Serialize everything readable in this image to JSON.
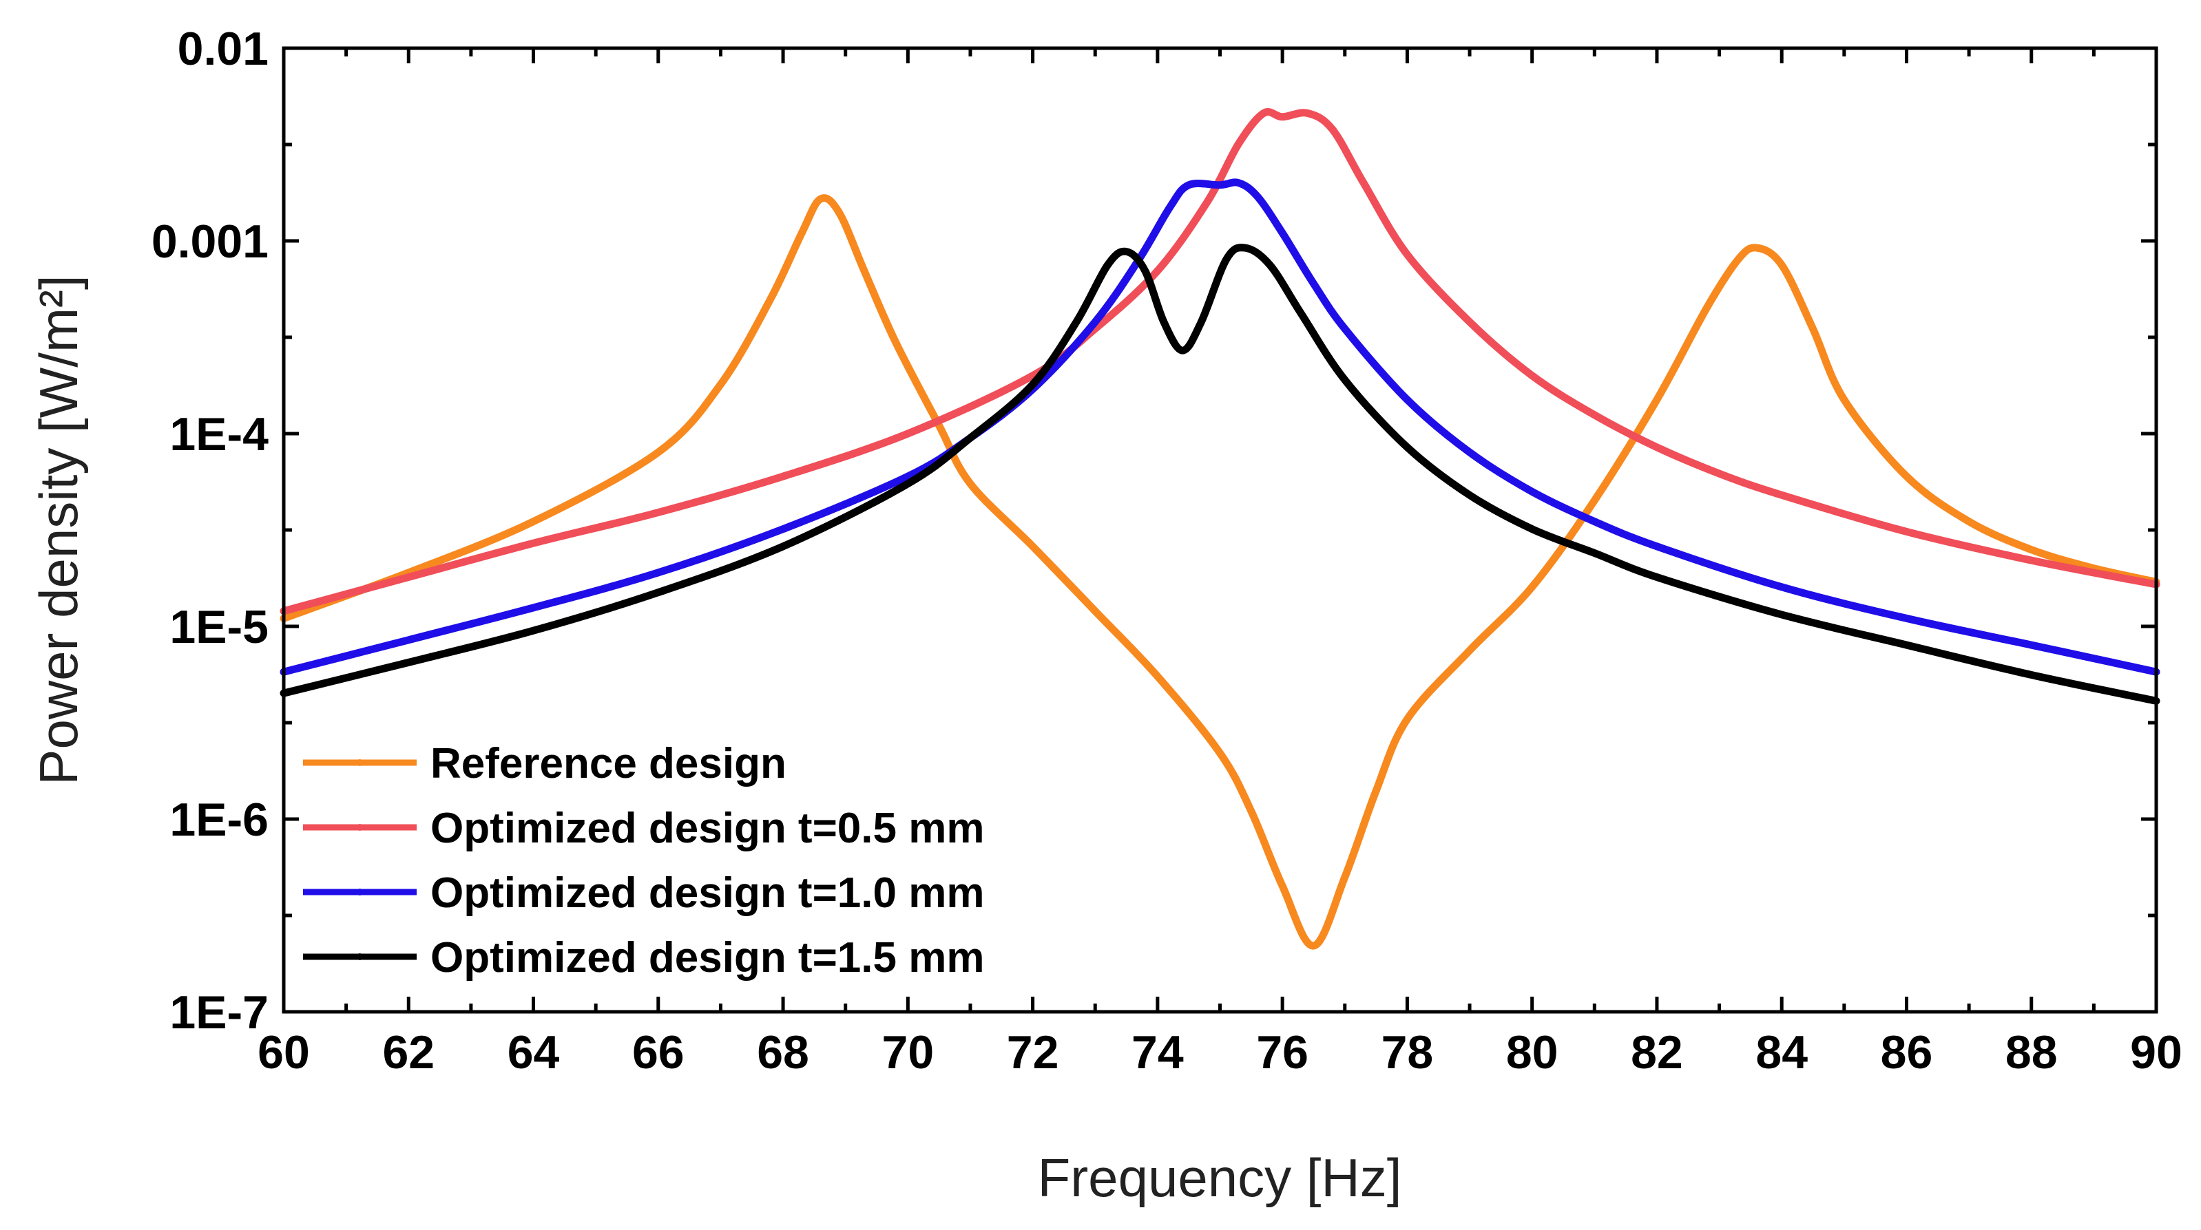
{
  "chart_data": {
    "type": "line",
    "title": "",
    "xlabel": "Frequency [Hz]",
    "ylabel": "Power density [W/m²]",
    "xlim": [
      60,
      90
    ],
    "ylim": [
      1e-07,
      0.01
    ],
    "yscale": "log",
    "x_ticks": [
      60,
      62,
      64,
      66,
      68,
      70,
      72,
      74,
      76,
      78,
      80,
      82,
      84,
      86,
      88,
      90
    ],
    "x_tick_labels": [
      "60",
      "62",
      "64",
      "66",
      "68",
      "70",
      "72",
      "74",
      "76",
      "78",
      "80",
      "82",
      "84",
      "86",
      "88",
      "90"
    ],
    "y_ticks": [
      1e-07,
      1e-06,
      1e-05,
      0.0001,
      0.001,
      0.01
    ],
    "y_tick_labels": [
      "1E-7",
      "1E-6",
      "1E-5",
      "1E-4",
      "0.001",
      "0.01"
    ],
    "legend_position": "bottom-left",
    "grid": false,
    "series": [
      {
        "name": "Reference design",
        "color": "#f7891f",
        "points": [
          [
            60,
            1.1e-05
          ],
          [
            62,
            1.9e-05
          ],
          [
            64,
            3.5e-05
          ],
          [
            66,
            8e-05
          ],
          [
            67,
            0.00018
          ],
          [
            67.8,
            0.0005
          ],
          [
            68.3,
            0.0011
          ],
          [
            68.6,
            0.00165
          ],
          [
            68.9,
            0.0014
          ],
          [
            69.3,
            0.0007
          ],
          [
            69.8,
            0.0003
          ],
          [
            70.5,
            0.00011
          ],
          [
            71,
            5.5e-05
          ],
          [
            72,
            2.6e-05
          ],
          [
            73,
            1.2e-05
          ],
          [
            74,
            5.5e-06
          ],
          [
            75,
            2.2e-06
          ],
          [
            75.5,
            1.1e-06
          ],
          [
            76,
            4.5e-07
          ],
          [
            76.5,
            2.2e-07
          ],
          [
            77,
            5e-07
          ],
          [
            77.5,
            1.4e-06
          ],
          [
            78,
            3.3e-06
          ],
          [
            79,
            7.5e-06
          ],
          [
            80,
            1.6e-05
          ],
          [
            81,
            4.5e-05
          ],
          [
            82,
            0.00015
          ],
          [
            82.8,
            0.00045
          ],
          [
            83.3,
            0.0008
          ],
          [
            83.6,
            0.00092
          ],
          [
            84,
            0.00075
          ],
          [
            84.5,
            0.00035
          ],
          [
            85,
            0.00015
          ],
          [
            86,
            6e-05
          ],
          [
            87,
            3.5e-05
          ],
          [
            88,
            2.5e-05
          ],
          [
            89,
            2e-05
          ],
          [
            90,
            1.7e-05
          ]
        ]
      },
      {
        "name": "Optimized design t=0.5 mm",
        "color": "#f04e58",
        "points": [
          [
            60,
            1.2e-05
          ],
          [
            62,
            1.8e-05
          ],
          [
            64,
            2.7e-05
          ],
          [
            66,
            3.9e-05
          ],
          [
            68,
            6e-05
          ],
          [
            70,
            0.0001
          ],
          [
            72,
            0.0002
          ],
          [
            73,
            0.00035
          ],
          [
            74,
            0.0007
          ],
          [
            74.8,
            0.0016
          ],
          [
            75.3,
            0.0032
          ],
          [
            75.7,
            0.0046
          ],
          [
            76,
            0.0044
          ],
          [
            76.4,
            0.0046
          ],
          [
            76.8,
            0.0038
          ],
          [
            77.3,
            0.002
          ],
          [
            78,
            0.00085
          ],
          [
            79,
            0.00038
          ],
          [
            80,
            0.0002
          ],
          [
            81,
            0.000125
          ],
          [
            82,
            8.5e-05
          ],
          [
            83,
            6.2e-05
          ],
          [
            84,
            4.8e-05
          ],
          [
            86,
            3.1e-05
          ],
          [
            88,
            2.2e-05
          ],
          [
            90,
            1.65e-05
          ]
        ]
      },
      {
        "name": "Optimized design t=1.0 mm",
        "color": "#1f0ee8",
        "points": [
          [
            60,
            5.8e-06
          ],
          [
            62,
            8.5e-06
          ],
          [
            64,
            1.25e-05
          ],
          [
            66,
            1.9e-05
          ],
          [
            68,
            3.2e-05
          ],
          [
            70,
            6e-05
          ],
          [
            71,
            9.5e-05
          ],
          [
            72,
            0.00017
          ],
          [
            73,
            0.00038
          ],
          [
            73.7,
            0.0008
          ],
          [
            74.2,
            0.0015
          ],
          [
            74.5,
            0.00195
          ],
          [
            75,
            0.00195
          ],
          [
            75.3,
            0.002
          ],
          [
            75.6,
            0.0017
          ],
          [
            76,
            0.0011
          ],
          [
            76.5,
            0.0006
          ],
          [
            77,
            0.00035
          ],
          [
            78,
            0.00015
          ],
          [
            79,
            8e-05
          ],
          [
            80,
            5e-05
          ],
          [
            81,
            3.5e-05
          ],
          [
            82,
            2.6e-05
          ],
          [
            84,
            1.6e-05
          ],
          [
            86,
            1.1e-05
          ],
          [
            88,
            8e-06
          ],
          [
            90,
            5.8e-06
          ]
        ]
      },
      {
        "name": "Optimized design t=1.5 mm",
        "color": "#000000",
        "points": [
          [
            60,
            4.5e-06
          ],
          [
            62,
            6.5e-06
          ],
          [
            64,
            9.5e-06
          ],
          [
            66,
            1.5e-05
          ],
          [
            68,
            2.6e-05
          ],
          [
            70,
            5.5e-05
          ],
          [
            71,
            9.5e-05
          ],
          [
            72,
            0.00018
          ],
          [
            72.7,
            0.00038
          ],
          [
            73.2,
            0.00075
          ],
          [
            73.5,
            0.00088
          ],
          [
            73.8,
            0.0007
          ],
          [
            74.1,
            0.00038
          ],
          [
            74.4,
            0.00027
          ],
          [
            74.7,
            0.00038
          ],
          [
            75.1,
            0.0008
          ],
          [
            75.4,
            0.00092
          ],
          [
            75.8,
            0.00075
          ],
          [
            76.3,
            0.00042
          ],
          [
            77,
            0.00019
          ],
          [
            78,
            8.5e-05
          ],
          [
            79,
            4.8e-05
          ],
          [
            80,
            3.2e-05
          ],
          [
            81,
            2.4e-05
          ],
          [
            82,
            1.8e-05
          ],
          [
            84,
            1.15e-05
          ],
          [
            86,
            8e-06
          ],
          [
            88,
            5.6e-06
          ],
          [
            90,
            4.1e-06
          ]
        ]
      }
    ]
  }
}
